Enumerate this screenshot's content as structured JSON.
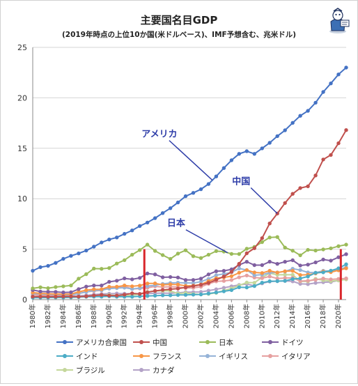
{
  "chart_data": {
    "type": "line",
    "title": "主要国名目GDP",
    "subtitle": "(2019年時点の上位10か国(米ドルベース)、IMF予想含む、兆米ドル)",
    "xlabel": "",
    "ylabel": "",
    "ylim": [
      0,
      25
    ],
    "yticks": [
      0,
      5,
      10,
      15,
      20,
      25
    ],
    "grid": true,
    "legend_position": "bottom",
    "x": [
      1980,
      1981,
      1982,
      1983,
      1984,
      1985,
      1986,
      1987,
      1988,
      1989,
      1990,
      1991,
      1992,
      1993,
      1994,
      1995,
      1996,
      1997,
      1998,
      1999,
      2000,
      2001,
      2002,
      2003,
      2004,
      2005,
      2006,
      2007,
      2008,
      2009,
      2010,
      2011,
      2012,
      2013,
      2014,
      2015,
      2016,
      2017,
      2018,
      2019,
      2020,
      2021
    ],
    "xtick_labels": [
      "1980年",
      "1982年",
      "1984年",
      "1986年",
      "1988年",
      "1990年",
      "1992年",
      "1994年",
      "1996年",
      "1998年",
      "2000年",
      "2002年",
      "2004年",
      "2006年",
      "2008年",
      "2010年",
      "2012年",
      "2014年",
      "2016年",
      "2018年",
      "2020年"
    ],
    "series": [
      {
        "name": "アメリカ合衆国",
        "color": "#4472c4",
        "values": [
          2.86,
          3.21,
          3.34,
          3.64,
          4.04,
          4.34,
          4.58,
          4.86,
          5.25,
          5.66,
          5.96,
          6.16,
          6.52,
          6.86,
          7.29,
          7.64,
          8.07,
          8.58,
          9.06,
          9.63,
          10.25,
          10.58,
          10.94,
          11.46,
          12.21,
          13.04,
          13.81,
          14.45,
          14.71,
          14.45,
          14.99,
          15.54,
          16.2,
          16.78,
          17.52,
          18.22,
          18.71,
          19.52,
          20.58,
          21.43,
          22.32,
          23.0
        ]
      },
      {
        "name": "中国",
        "color": "#c0504d",
        "values": [
          0.3,
          0.29,
          0.28,
          0.3,
          0.31,
          0.31,
          0.3,
          0.33,
          0.41,
          0.46,
          0.4,
          0.41,
          0.49,
          0.62,
          0.56,
          0.73,
          0.86,
          0.96,
          1.03,
          1.09,
          1.21,
          1.34,
          1.47,
          1.66,
          1.96,
          2.29,
          2.75,
          3.55,
          4.59,
          5.1,
          6.09,
          7.55,
          8.53,
          9.57,
          10.48,
          11.06,
          11.23,
          12.31,
          13.89,
          14.34,
          15.5,
          16.8
        ]
      },
      {
        "name": "日本",
        "color": "#9bbb59",
        "values": [
          1.11,
          1.22,
          1.13,
          1.24,
          1.32,
          1.4,
          2.08,
          2.52,
          3.07,
          3.05,
          3.13,
          3.58,
          3.91,
          4.45,
          4.91,
          5.45,
          4.83,
          4.41,
          4.03,
          4.56,
          4.89,
          4.3,
          4.12,
          4.45,
          4.81,
          4.76,
          4.53,
          4.52,
          5.04,
          5.23,
          5.7,
          6.16,
          6.2,
          5.16,
          4.85,
          4.39,
          4.93,
          4.86,
          4.97,
          5.08,
          5.3,
          5.45
        ]
      },
      {
        "name": "ドイツ",
        "color": "#7f5fa0",
        "values": [
          0.95,
          0.8,
          0.78,
          0.77,
          0.71,
          0.73,
          1.04,
          1.29,
          1.4,
          1.4,
          1.76,
          1.87,
          2.1,
          2.01,
          2.15,
          2.59,
          2.5,
          2.21,
          2.24,
          2.19,
          1.95,
          1.95,
          2.08,
          2.5,
          2.81,
          2.85,
          3.0,
          3.44,
          3.75,
          3.42,
          3.42,
          3.76,
          3.54,
          3.75,
          3.9,
          3.38,
          3.47,
          3.69,
          3.97,
          3.86,
          4.2,
          4.5
        ]
      },
      {
        "name": "インド",
        "color": "#4bacc6",
        "values": [
          0.19,
          0.2,
          0.2,
          0.22,
          0.21,
          0.23,
          0.25,
          0.28,
          0.3,
          0.3,
          0.33,
          0.28,
          0.29,
          0.28,
          0.33,
          0.36,
          0.39,
          0.42,
          0.42,
          0.46,
          0.47,
          0.49,
          0.51,
          0.61,
          0.71,
          0.82,
          0.94,
          1.22,
          1.2,
          1.34,
          1.68,
          1.82,
          1.83,
          1.86,
          2.04,
          2.1,
          2.29,
          2.65,
          2.7,
          2.87,
          3.1,
          3.5
        ]
      },
      {
        "name": "フランス",
        "color": "#f79646",
        "values": [
          0.7,
          0.62,
          0.59,
          0.56,
          0.53,
          0.55,
          0.77,
          0.93,
          1.02,
          1.03,
          1.27,
          1.28,
          1.4,
          1.32,
          1.39,
          1.6,
          1.61,
          1.46,
          1.51,
          1.49,
          1.36,
          1.38,
          1.5,
          1.84,
          2.12,
          2.2,
          2.32,
          2.66,
          2.92,
          2.69,
          2.64,
          2.86,
          2.68,
          2.81,
          2.85,
          2.44,
          2.47,
          2.59,
          2.79,
          2.72,
          2.9,
          3.1
        ]
      },
      {
        "name": "イギリス",
        "color": "#95b3d7",
        "values": [
          0.6,
          0.57,
          0.54,
          0.51,
          0.47,
          0.49,
          0.6,
          0.75,
          0.91,
          0.93,
          1.09,
          1.14,
          1.18,
          1.06,
          1.14,
          1.34,
          1.42,
          1.56,
          1.65,
          1.68,
          1.66,
          1.64,
          1.78,
          2.05,
          2.42,
          2.54,
          2.71,
          3.09,
          2.93,
          2.41,
          2.48,
          2.66,
          2.7,
          2.78,
          3.06,
          2.93,
          2.69,
          2.67,
          2.86,
          2.83,
          3.0,
          3.2
        ]
      },
      {
        "name": "イタリア",
        "color": "#e6a0a0",
        "values": [
          0.48,
          0.43,
          0.43,
          0.44,
          0.43,
          0.45,
          0.62,
          0.77,
          0.85,
          0.92,
          1.18,
          1.24,
          1.32,
          1.06,
          1.1,
          1.17,
          1.31,
          1.24,
          1.27,
          1.25,
          1.14,
          1.17,
          1.27,
          1.57,
          1.8,
          1.85,
          1.94,
          2.21,
          2.39,
          2.19,
          2.13,
          2.29,
          2.09,
          2.14,
          2.16,
          1.83,
          1.87,
          1.96,
          2.09,
          2.0,
          2.05,
          2.1
        ]
      },
      {
        "name": "ブラジル",
        "color": "#c4d79b",
        "values": [
          0.24,
          0.26,
          0.28,
          0.2,
          0.2,
          0.22,
          0.27,
          0.29,
          0.32,
          0.44,
          0.46,
          0.4,
          0.39,
          0.43,
          0.56,
          0.77,
          0.85,
          0.88,
          0.86,
          0.6,
          0.66,
          0.56,
          0.51,
          0.56,
          0.67,
          0.89,
          1.11,
          1.4,
          1.69,
          1.67,
          2.21,
          2.62,
          2.46,
          2.47,
          2.46,
          1.8,
          1.8,
          2.06,
          1.92,
          1.84,
          1.9,
          2.0
        ]
      },
      {
        "name": "カナダ",
        "color": "#b3a2c7",
        "values": [
          0.28,
          0.31,
          0.31,
          0.34,
          0.35,
          0.36,
          0.37,
          0.42,
          0.5,
          0.56,
          0.59,
          0.61,
          0.59,
          0.58,
          0.58,
          0.6,
          0.63,
          0.65,
          0.63,
          0.68,
          0.74,
          0.74,
          0.76,
          0.89,
          1.02,
          1.17,
          1.32,
          1.46,
          1.55,
          1.37,
          1.61,
          1.79,
          1.83,
          1.85,
          1.81,
          1.56,
          1.53,
          1.65,
          1.72,
          1.74,
          1.9,
          2.1
        ]
      }
    ],
    "annotations": [
      {
        "text": "アメリカ",
        "color": "#2e3da8",
        "target_series": 0,
        "target_year": 2003.5
      },
      {
        "text": "中国",
        "color": "#2e3da8",
        "target_series": 1,
        "target_year": 2012
      },
      {
        "text": "日本",
        "color": "#2e3da8",
        "target_series": 2,
        "target_year": 2005.5
      }
    ],
    "markers": [
      {
        "year": 1994.6,
        "color": "#d9262b"
      },
      {
        "year": 2020.3,
        "color": "#d9262b"
      }
    ]
  }
}
